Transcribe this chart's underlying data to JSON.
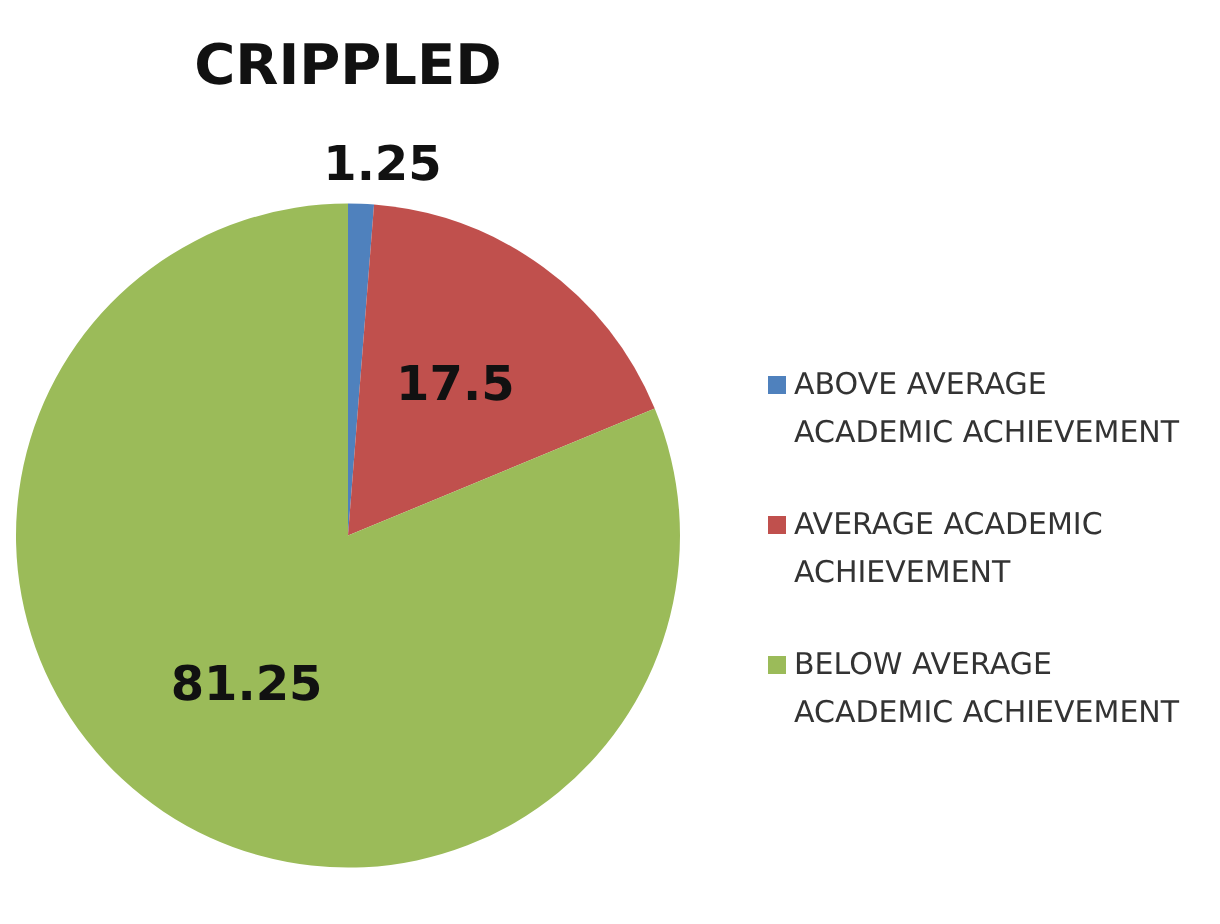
{
  "chart_data": {
    "type": "pie",
    "title": "CRIPPLED",
    "categories": [
      "ABOVE AVERAGE ACADEMIC ACHIEVEMENT",
      "AVERAGE ACADEMIC ACHIEVEMENT",
      "BELOW AVERAGE ACADEMIC ACHIEVEMENT"
    ],
    "values": [
      1.25,
      17.5,
      81.25
    ],
    "colors": [
      "#4f81bd",
      "#c0504d",
      "#9bbb59"
    ],
    "data_labels": true,
    "legend": "right"
  }
}
